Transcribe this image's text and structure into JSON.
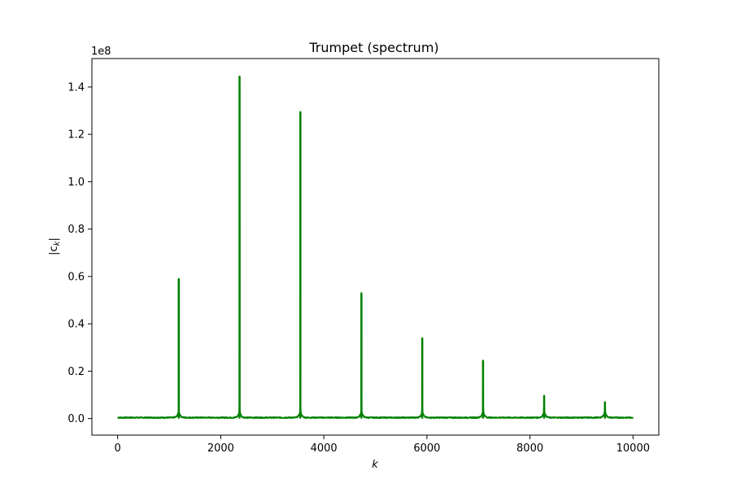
{
  "chart_data": {
    "type": "line",
    "title": "Trumpet (spectrum)",
    "xlabel": "k",
    "ylabel_base": "|c",
    "ylabel_sub": "k",
    "ylabel_end": "|",
    "y_offset_text": "1e8",
    "xlim": [
      -500,
      10500
    ],
    "ylim": [
      -0.07,
      1.52
    ],
    "x_ticks": [
      0,
      2000,
      4000,
      6000,
      8000,
      10000
    ],
    "x_tick_labels": [
      "0",
      "2000",
      "4000",
      "6000",
      "8000",
      "10000"
    ],
    "y_ticks": [
      0.0,
      0.2,
      0.4,
      0.6,
      0.8,
      1.0,
      1.2,
      1.4
    ],
    "y_tick_labels": [
      "0.0",
      "0.2",
      "0.4",
      "0.6",
      "0.8",
      "1.0",
      "1.2",
      "1.4"
    ],
    "y_scale_multiplier": 100000000,
    "grid": false,
    "series": [
      {
        "color": "#008000",
        "x_range": [
          0,
          10000
        ],
        "baseline": 0.002,
        "peaks": [
          {
            "k": 1185,
            "value": 0.59
          },
          {
            "k": 2365,
            "value": 1.445
          },
          {
            "k": 3545,
            "value": 1.295
          },
          {
            "k": 4730,
            "value": 0.53
          },
          {
            "k": 5910,
            "value": 0.34
          },
          {
            "k": 7090,
            "value": 0.245
          },
          {
            "k": 8275,
            "value": 0.097
          },
          {
            "k": 9455,
            "value": 0.07
          }
        ]
      }
    ]
  }
}
